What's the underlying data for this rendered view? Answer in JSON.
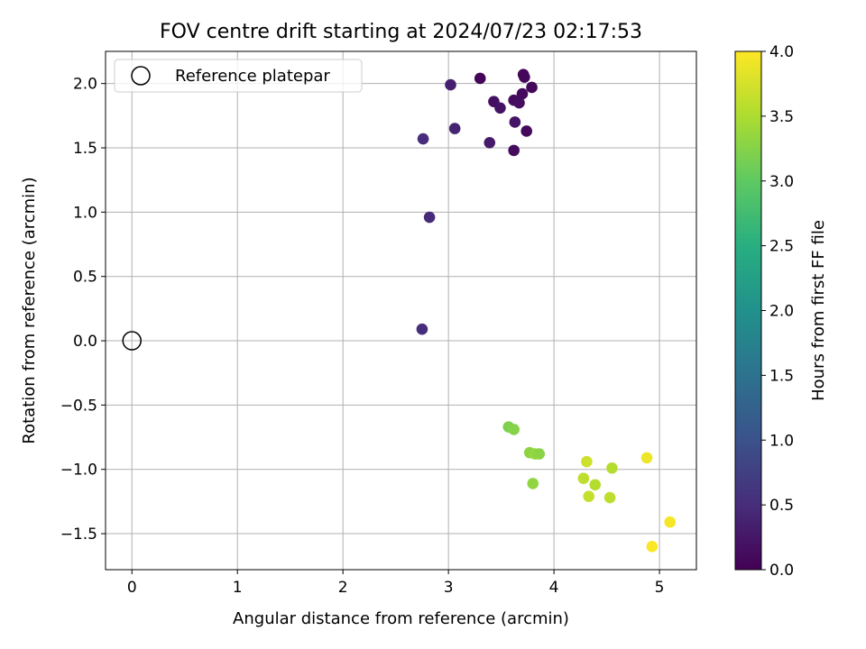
{
  "chart_data": {
    "type": "scatter",
    "title": "FOV centre drift starting at 2024/07/23 02:17:53",
    "xlabel": "Angular distance from reference (arcmin)",
    "ylabel": "Rotation from reference (arcmin)",
    "xlim": [
      -0.25,
      5.35
    ],
    "ylim": [
      -1.78,
      2.25
    ],
    "xticks": [
      0,
      1,
      2,
      3,
      4,
      5
    ],
    "xtick_labels": [
      "0",
      "1",
      "2",
      "3",
      "4",
      "5"
    ],
    "yticks": [
      -1.5,
      -1.0,
      -0.5,
      0.0,
      0.5,
      1.0,
      1.5,
      2.0
    ],
    "ytick_labels": [
      "−1.5",
      "−1.0",
      "−0.5",
      "0.0",
      "0.5",
      "1.0",
      "1.5",
      "2.0"
    ],
    "grid": true,
    "legend": {
      "placement": "upper-left",
      "entries": [
        {
          "label": "Reference platepar",
          "marker": "open-circle"
        }
      ]
    },
    "reference_point": {
      "x": 0.0,
      "y": 0.0
    },
    "colorbar": {
      "label": "Hours from first FF file",
      "colormap": "viridis",
      "range": [
        0.0,
        4.0
      ],
      "ticks": [
        0.0,
        0.5,
        1.0,
        1.5,
        2.0,
        2.5,
        3.0,
        3.5,
        4.0
      ],
      "tick_labels": [
        "0.0",
        "0.5",
        "1.0",
        "1.5",
        "2.0",
        "2.5",
        "3.0",
        "3.5",
        "4.0"
      ]
    },
    "points": [
      {
        "x": 3.3,
        "y": 2.04,
        "hours": 0.05
      },
      {
        "x": 3.71,
        "y": 2.07,
        "hours": 0.06
      },
      {
        "x": 3.72,
        "y": 2.05,
        "hours": 0.07
      },
      {
        "x": 3.79,
        "y": 1.97,
        "hours": 0.08
      },
      {
        "x": 3.7,
        "y": 1.92,
        "hours": 0.1
      },
      {
        "x": 3.62,
        "y": 1.87,
        "hours": 0.12
      },
      {
        "x": 3.67,
        "y": 1.85,
        "hours": 0.15
      },
      {
        "x": 3.43,
        "y": 1.86,
        "hours": 0.17
      },
      {
        "x": 3.49,
        "y": 1.81,
        "hours": 0.2
      },
      {
        "x": 3.63,
        "y": 1.7,
        "hours": 0.22
      },
      {
        "x": 3.74,
        "y": 1.63,
        "hours": 0.1
      },
      {
        "x": 3.62,
        "y": 1.48,
        "hours": 0.12
      },
      {
        "x": 3.39,
        "y": 1.54,
        "hours": 0.28
      },
      {
        "x": 3.02,
        "y": 1.99,
        "hours": 0.35
      },
      {
        "x": 3.06,
        "y": 1.65,
        "hours": 0.4
      },
      {
        "x": 2.76,
        "y": 1.57,
        "hours": 0.5
      },
      {
        "x": 2.82,
        "y": 0.96,
        "hours": 0.48
      },
      {
        "x": 2.75,
        "y": 0.09,
        "hours": 0.52
      },
      {
        "x": 3.57,
        "y": -0.67,
        "hours": 3.2
      },
      {
        "x": 3.62,
        "y": -0.69,
        "hours": 3.25
      },
      {
        "x": 3.77,
        "y": -0.87,
        "hours": 3.3
      },
      {
        "x": 3.82,
        "y": -0.88,
        "hours": 3.35
      },
      {
        "x": 3.86,
        "y": -0.88,
        "hours": 3.28
      },
      {
        "x": 3.8,
        "y": -1.11,
        "hours": 3.32
      },
      {
        "x": 4.31,
        "y": -0.94,
        "hours": 3.7
      },
      {
        "x": 4.28,
        "y": -1.07,
        "hours": 3.6
      },
      {
        "x": 4.39,
        "y": -1.12,
        "hours": 3.55
      },
      {
        "x": 4.33,
        "y": -1.21,
        "hours": 3.65
      },
      {
        "x": 4.55,
        "y": -0.99,
        "hours": 3.55
      },
      {
        "x": 4.53,
        "y": -1.22,
        "hours": 3.6
      },
      {
        "x": 4.88,
        "y": -0.91,
        "hours": 3.9
      },
      {
        "x": 5.1,
        "y": -1.41,
        "hours": 3.95
      },
      {
        "x": 4.93,
        "y": -1.6,
        "hours": 3.98
      }
    ]
  }
}
